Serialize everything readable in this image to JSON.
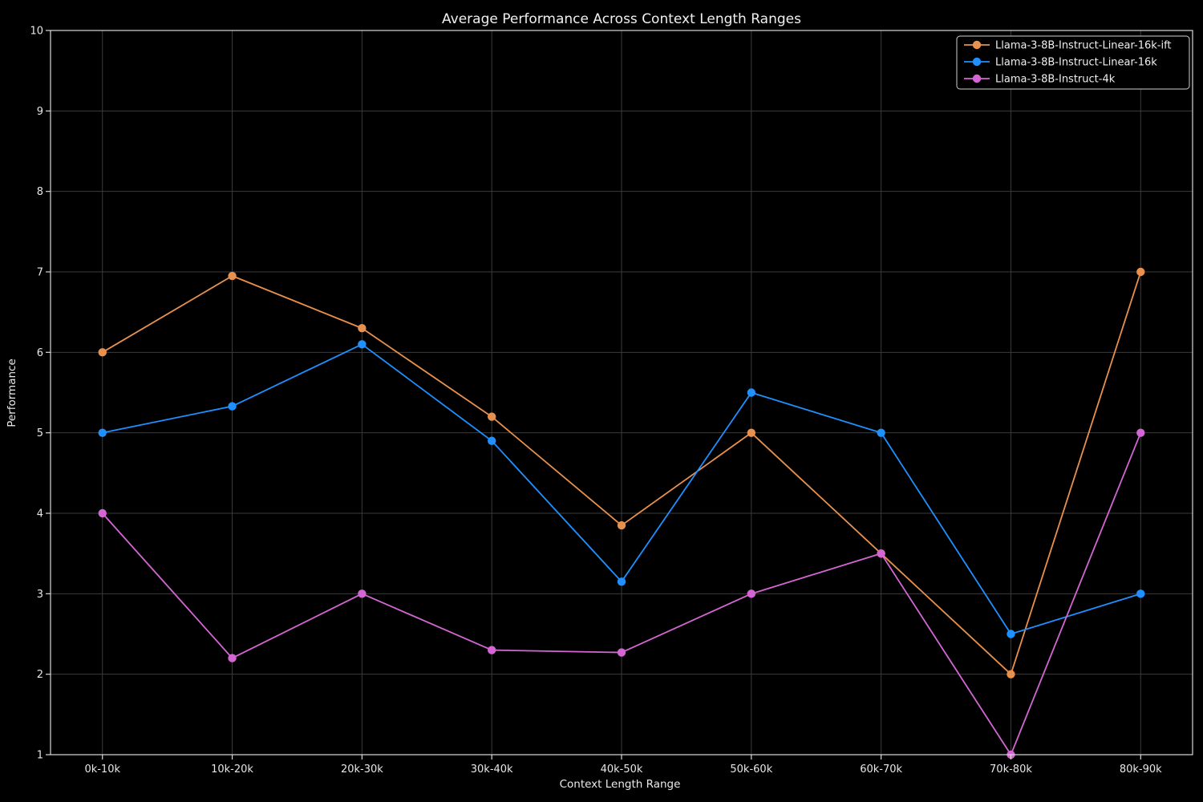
{
  "chart_data": {
    "type": "line",
    "title": "Average Performance Across Context Length Ranges",
    "xlabel": "Context Length Range",
    "ylabel": "Performance",
    "categories": [
      "0k-10k",
      "10k-20k",
      "20k-30k",
      "30k-40k",
      "40k-50k",
      "50k-60k",
      "60k-70k",
      "70k-80k",
      "80k-90k"
    ],
    "series": [
      {
        "name": "Llama-3-8B-Instruct-Linear-16k-ift",
        "color": "#e8914e",
        "marker": "circle",
        "values": [
          6.0,
          6.95,
          6.3,
          5.2,
          3.85,
          5.0,
          3.5,
          2.0,
          7.0
        ]
      },
      {
        "name": "Llama-3-8B-Instruct-Linear-16k",
        "color": "#1e90ff",
        "marker": "circle",
        "values": [
          5.0,
          5.33,
          6.1,
          4.9,
          3.15,
          5.5,
          5.0,
          2.5,
          3.0
        ]
      },
      {
        "name": "Llama-3-8B-Instruct-4k",
        "color": "#d466d4",
        "marker": "circle",
        "values": [
          4.0,
          2.2,
          3.0,
          2.3,
          2.27,
          3.0,
          3.5,
          1.0,
          5.0
        ]
      }
    ],
    "ylim": [
      1,
      10
    ],
    "yticks": [
      1,
      2,
      3,
      4,
      5,
      6,
      7,
      8,
      9,
      10
    ],
    "grid": true,
    "legend_position": "upper right"
  },
  "colors": {
    "background": "#000000",
    "text": "#f0f0f0",
    "grid": "#3b3b3b",
    "spine": "#d9d9d9",
    "legend_border": "#cfcfcf",
    "legend_bg": "#000000"
  }
}
